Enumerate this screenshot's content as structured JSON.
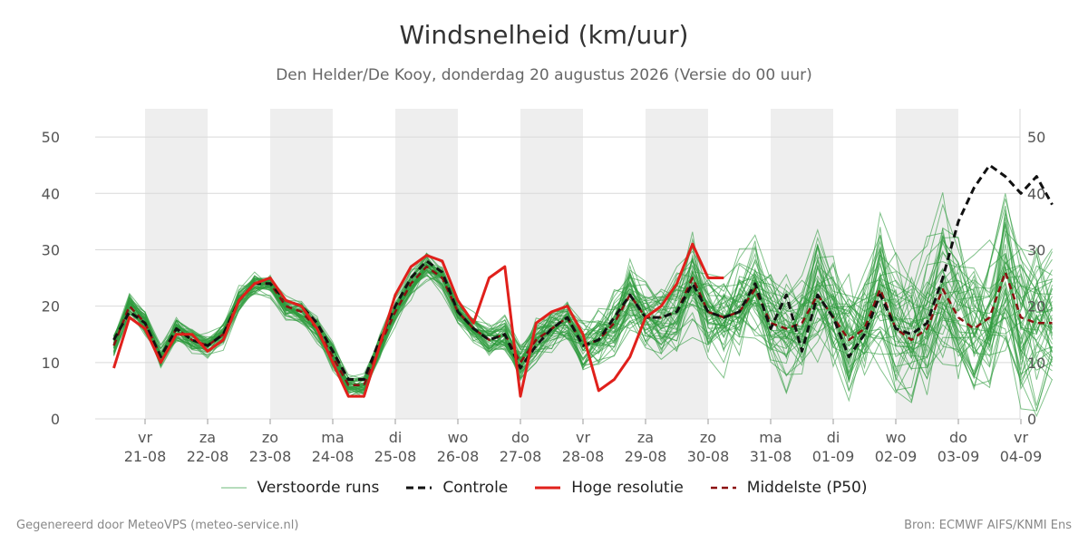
{
  "header": {
    "title": "Windsnelheid (km/uur)",
    "subtitle": "Den Helder/De Kooy, donderdag 20 augustus 2026 (Versie do 00 uur)"
  },
  "legend": {
    "ensemble_label": "Verstoorde runs",
    "control_label": "Controle",
    "hires_label": "Hoge resolutie",
    "median_label": "Middelste (P50)"
  },
  "footer": {
    "left": "Gegenereerd door MeteoVPS (meteo-service.nl)",
    "right": "Bron: ECMWF AIFS/KNMI Ens"
  },
  "colors": {
    "ensemble": "#2e9b3e",
    "control": "#111111",
    "hires": "#e0201b",
    "median": "#8b1010",
    "band": "#eeeeee",
    "grid": "#d9d9d9"
  },
  "chart_data": {
    "type": "line",
    "title": "Windsnelheid (km/uur)",
    "subtitle": "Den Helder/De Kooy, donderdag 20 augustus 2026 (Versie do 00 uur)",
    "ylim": [
      0,
      55
    ],
    "yticks": [
      0,
      10,
      20,
      30,
      40,
      50
    ],
    "y_axis_both_sides": true,
    "grid": true,
    "legend_position": "bottom",
    "x_start_day": 20.5,
    "x_end_day": 36,
    "x_step_days": 0.25,
    "day_ticks": [
      {
        "day": 21,
        "weekday": "vr",
        "date": "21-08"
      },
      {
        "day": 22,
        "weekday": "za",
        "date": "22-08"
      },
      {
        "day": 23,
        "weekday": "zo",
        "date": "23-08"
      },
      {
        "day": 24,
        "weekday": "ma",
        "date": "24-08"
      },
      {
        "day": 25,
        "weekday": "di",
        "date": "25-08"
      },
      {
        "day": 26,
        "weekday": "wo",
        "date": "26-08"
      },
      {
        "day": 27,
        "weekday": "do",
        "date": "27-08"
      },
      {
        "day": 28,
        "weekday": "vr",
        "date": "28-08"
      },
      {
        "day": 29,
        "weekday": "za",
        "date": "29-08"
      },
      {
        "day": 30,
        "weekday": "zo",
        "date": "30-08"
      },
      {
        "day": 31,
        "weekday": "ma",
        "date": "31-08"
      },
      {
        "day": 32,
        "weekday": "di",
        "date": "01-09"
      },
      {
        "day": 33,
        "weekday": "wo",
        "date": "02-09"
      },
      {
        "day": 34,
        "weekday": "do",
        "date": "03-09"
      },
      {
        "day": 35,
        "weekday": "vr",
        "date": "04-09"
      }
    ],
    "shaded_days": [
      21,
      23,
      25,
      27,
      29,
      31,
      33
    ],
    "ensemble_member_count": 50,
    "series": [
      {
        "name": "Controle",
        "style": "dashed",
        "values": [
          14,
          19,
          17,
          11,
          16,
          14,
          13,
          15,
          21,
          24,
          24,
          21,
          20,
          17,
          12,
          7,
          7,
          14,
          20,
          25,
          28,
          26,
          19,
          16,
          14,
          15,
          9,
          13,
          16,
          18,
          13,
          14,
          18,
          22,
          18,
          18,
          19,
          24,
          19,
          18,
          19,
          24,
          16,
          22,
          12,
          22,
          18,
          11,
          15,
          22,
          16,
          15,
          17,
          25,
          35,
          41,
          45,
          43,
          40,
          43,
          38
        ]
      },
      {
        "name": "Hoge resolutie",
        "style": "solid",
        "values": [
          9,
          18,
          16,
          10,
          15,
          15,
          12,
          14,
          21,
          24,
          25,
          21,
          20,
          16,
          10,
          4,
          4,
          13,
          22,
          27,
          29,
          28,
          21,
          17,
          25,
          27,
          4,
          17,
          19,
          20,
          15,
          5,
          7,
          11,
          18,
          20,
          24,
          31,
          25,
          25
        ]
      },
      {
        "name": "Middelste (P50)",
        "style": "dashed",
        "values": [
          13,
          20,
          17,
          11,
          16,
          14,
          13,
          15,
          21,
          24,
          24,
          20,
          19,
          16,
          11,
          6,
          6,
          13,
          19,
          24,
          27,
          25,
          19,
          16,
          14,
          15,
          10,
          14,
          16,
          18,
          13,
          14,
          17,
          22,
          18,
          18,
          19,
          25,
          19,
          18,
          19,
          23,
          17,
          16,
          17,
          22,
          18,
          14,
          16,
          23,
          16,
          14,
          16,
          23,
          18,
          16,
          18,
          26,
          18,
          17,
          17
        ]
      }
    ]
  }
}
